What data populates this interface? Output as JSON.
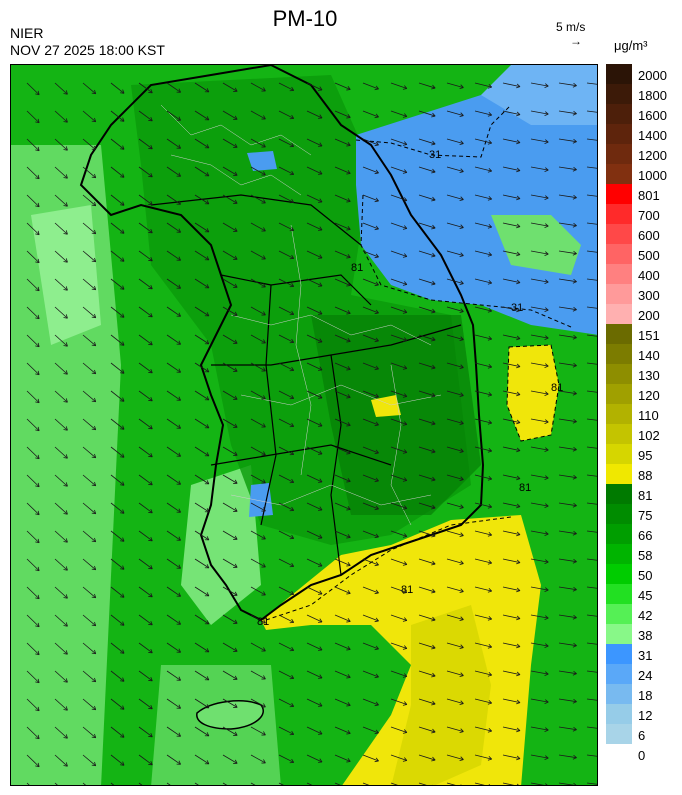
{
  "header": {
    "title": "PM-10",
    "agency": "NIER",
    "datetime": "NOV 27 2025 18:00 KST",
    "wind_reference": "5 m/s",
    "wind_reference_arrow": "→",
    "unit": "μg/m³"
  },
  "map": {
    "contour_labels": [
      "31",
      "31",
      "81",
      "81",
      "81",
      "81",
      "81"
    ],
    "wind_direction": "north-westerly flow toward south-east",
    "colors": {
      "blue_low": "#4a9cf0",
      "green_mid": "#14b414",
      "green_dark": "#0a9a0a",
      "green_light": "#6fe06f",
      "yellow": "#f0e60a",
      "olive": "#c8c800"
    }
  },
  "legend": {
    "entries": [
      {
        "label": "2000",
        "color": "#2b1406"
      },
      {
        "label": "1800",
        "color": "#3c1a08"
      },
      {
        "label": "1600",
        "color": "#4d1f0a"
      },
      {
        "label": "1400",
        "color": "#5e240c"
      },
      {
        "label": "1200",
        "color": "#6f2a0e"
      },
      {
        "label": "1000",
        "color": "#813010"
      },
      {
        "label": "801",
        "color": "#ff0000"
      },
      {
        "label": "700",
        "color": "#ff2a2a"
      },
      {
        "label": "600",
        "color": "#ff4848"
      },
      {
        "label": "500",
        "color": "#ff6464"
      },
      {
        "label": "400",
        "color": "#ff8080"
      },
      {
        "label": "300",
        "color": "#ff9a9a"
      },
      {
        "label": "200",
        "color": "#ffb0b0"
      },
      {
        "label": "151",
        "color": "#6b6b00"
      },
      {
        "label": "140",
        "color": "#7c7c00"
      },
      {
        "label": "130",
        "color": "#8e8e00"
      },
      {
        "label": "120",
        "color": "#a0a000"
      },
      {
        "label": "110",
        "color": "#b2b200"
      },
      {
        "label": "102",
        "color": "#c4c400"
      },
      {
        "label": "95",
        "color": "#d6d600"
      },
      {
        "label": "88",
        "color": "#f0e800"
      },
      {
        "label": "81",
        "color": "#007a00"
      },
      {
        "label": "75",
        "color": "#008c00"
      },
      {
        "label": "66",
        "color": "#009e00"
      },
      {
        "label": "58",
        "color": "#00b400"
      },
      {
        "label": "50",
        "color": "#00cc00"
      },
      {
        "label": "45",
        "color": "#22e022"
      },
      {
        "label": "42",
        "color": "#55f055"
      },
      {
        "label": "38",
        "color": "#88f888"
      },
      {
        "label": "31",
        "color": "#3c96ff"
      },
      {
        "label": "24",
        "color": "#5aa8f8"
      },
      {
        "label": "18",
        "color": "#78baf0"
      },
      {
        "label": "12",
        "color": "#96cce8"
      },
      {
        "label": "6",
        "color": "#a8d4e8"
      },
      {
        "label": "0",
        "color": "#ffffff"
      }
    ]
  }
}
